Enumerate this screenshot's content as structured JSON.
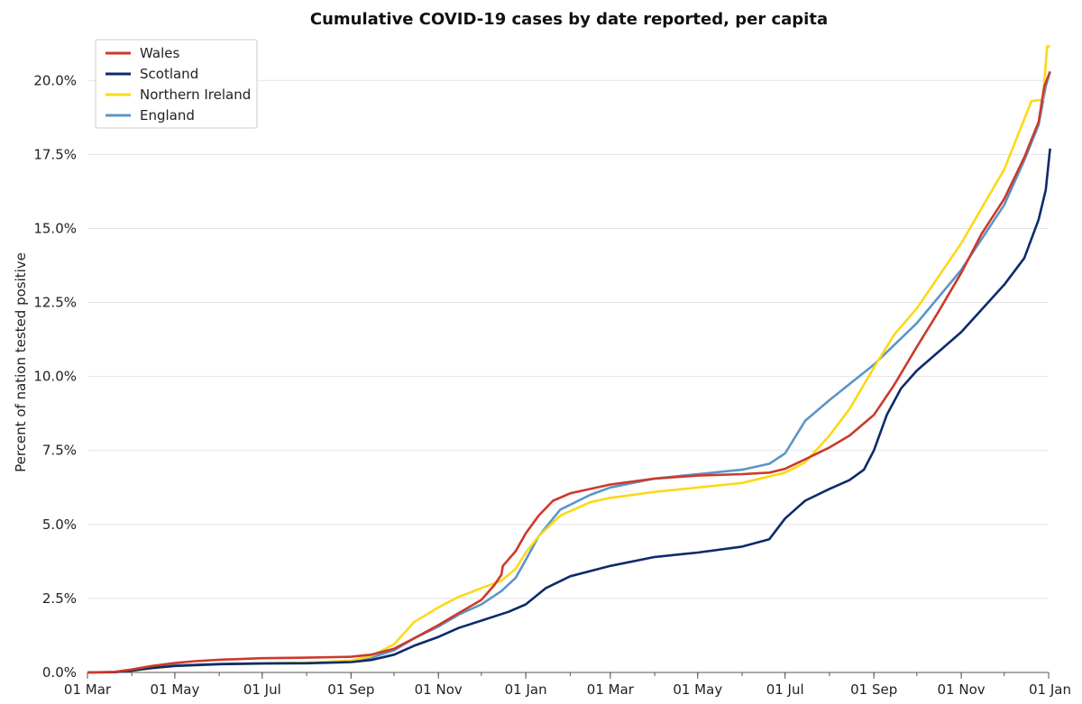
{
  "chart_data": {
    "type": "line",
    "title": "Cumulative COVID-19 cases by date reported, per capita",
    "xlabel": "",
    "ylabel": "Percent of nation tested positive",
    "x_start": "2020-03-01",
    "x_end": "2022-01-01",
    "xlim": [
      "2020-03-01",
      "2022-01-01"
    ],
    "ylim": [
      0,
      21.5
    ],
    "x_ticks": [
      {
        "date": "2020-03-01",
        "label": "01 Mar"
      },
      {
        "date": "2020-05-01",
        "label": "01 May"
      },
      {
        "date": "2020-07-01",
        "label": "01 Jul"
      },
      {
        "date": "2020-09-01",
        "label": "01 Sep"
      },
      {
        "date": "2020-11-01",
        "label": "01 Nov"
      },
      {
        "date": "2021-01-01",
        "label": "01 Jan"
      },
      {
        "date": "2021-03-01",
        "label": "01 Mar"
      },
      {
        "date": "2021-05-01",
        "label": "01 May"
      },
      {
        "date": "2021-07-01",
        "label": "01 Jul"
      },
      {
        "date": "2021-09-01",
        "label": "01 Sep"
      },
      {
        "date": "2021-11-01",
        "label": "01 Nov"
      },
      {
        "date": "2022-01-01",
        "label": "01 Jan"
      }
    ],
    "y_ticks": [
      {
        "value": 0,
        "label": "0.0%"
      },
      {
        "value": 2.5,
        "label": "2.5%"
      },
      {
        "value": 5,
        "label": "5.0%"
      },
      {
        "value": 7.5,
        "label": "7.5%"
      },
      {
        "value": 10,
        "label": "10.0%"
      },
      {
        "value": 12.5,
        "label": "12.5%"
      },
      {
        "value": 15,
        "label": "15.0%"
      },
      {
        "value": 17.5,
        "label": "17.5%"
      },
      {
        "value": 20,
        "label": "20.0%"
      }
    ],
    "grid": "horizontal",
    "legend_position": "top-left",
    "series": [
      {
        "name": "Wales",
        "color": "#cc3a2a",
        "points": [
          [
            "2020-03-01",
            0
          ],
          [
            "2020-03-20",
            0.02
          ],
          [
            "2020-04-01",
            0.1
          ],
          [
            "2020-04-15",
            0.22
          ],
          [
            "2020-05-01",
            0.32
          ],
          [
            "2020-05-15",
            0.38
          ],
          [
            "2020-06-01",
            0.43
          ],
          [
            "2020-07-01",
            0.48
          ],
          [
            "2020-08-01",
            0.5
          ],
          [
            "2020-09-01",
            0.53
          ],
          [
            "2020-09-15",
            0.6
          ],
          [
            "2020-10-01",
            0.8
          ],
          [
            "2020-10-15",
            1.15
          ],
          [
            "2020-11-01",
            1.6
          ],
          [
            "2020-11-15",
            2.0
          ],
          [
            "2020-12-01",
            2.45
          ],
          [
            "2020-12-10",
            2.95
          ],
          [
            "2020-12-15",
            3.3
          ],
          [
            "2020-12-16",
            3.6
          ],
          [
            "2020-12-25",
            4.1
          ],
          [
            "2021-01-01",
            4.7
          ],
          [
            "2021-01-10",
            5.3
          ],
          [
            "2021-01-20",
            5.8
          ],
          [
            "2021-02-01",
            6.05
          ],
          [
            "2021-03-01",
            6.35
          ],
          [
            "2021-04-01",
            6.55
          ],
          [
            "2021-05-01",
            6.65
          ],
          [
            "2021-06-01",
            6.7
          ],
          [
            "2021-06-20",
            6.75
          ],
          [
            "2021-07-01",
            6.88
          ],
          [
            "2021-07-15",
            7.2
          ],
          [
            "2021-08-01",
            7.6
          ],
          [
            "2021-08-15",
            8.0
          ],
          [
            "2021-09-01",
            8.7
          ],
          [
            "2021-09-15",
            9.7
          ],
          [
            "2021-10-01",
            11.0
          ],
          [
            "2021-10-15",
            12.1
          ],
          [
            "2021-11-01",
            13.5
          ],
          [
            "2021-11-15",
            14.8
          ],
          [
            "2021-12-01",
            16.0
          ],
          [
            "2021-12-15",
            17.4
          ],
          [
            "2021-12-25",
            18.6
          ],
          [
            "2021-12-29",
            19.8
          ],
          [
            "2022-01-02",
            20.3
          ]
        ]
      },
      {
        "name": "Scotland",
        "color": "#0d2a6b",
        "points": [
          [
            "2020-03-01",
            0
          ],
          [
            "2020-03-20",
            0.01
          ],
          [
            "2020-04-01",
            0.06
          ],
          [
            "2020-04-15",
            0.15
          ],
          [
            "2020-05-01",
            0.22
          ],
          [
            "2020-06-01",
            0.28
          ],
          [
            "2020-07-01",
            0.3
          ],
          [
            "2020-08-01",
            0.31
          ],
          [
            "2020-09-01",
            0.35
          ],
          [
            "2020-09-15",
            0.42
          ],
          [
            "2020-10-01",
            0.6
          ],
          [
            "2020-10-15",
            0.9
          ],
          [
            "2020-11-01",
            1.2
          ],
          [
            "2020-11-15",
            1.5
          ],
          [
            "2020-12-01",
            1.75
          ],
          [
            "2020-12-20",
            2.05
          ],
          [
            "2021-01-01",
            2.3
          ],
          [
            "2021-01-15",
            2.85
          ],
          [
            "2021-02-01",
            3.25
          ],
          [
            "2021-03-01",
            3.6
          ],
          [
            "2021-04-01",
            3.9
          ],
          [
            "2021-05-01",
            4.05
          ],
          [
            "2021-06-01",
            4.25
          ],
          [
            "2021-06-20",
            4.5
          ],
          [
            "2021-07-01",
            5.2
          ],
          [
            "2021-07-15",
            5.8
          ],
          [
            "2021-08-01",
            6.2
          ],
          [
            "2021-08-15",
            6.5
          ],
          [
            "2021-08-25",
            6.85
          ],
          [
            "2021-09-01",
            7.5
          ],
          [
            "2021-09-10",
            8.7
          ],
          [
            "2021-09-20",
            9.6
          ],
          [
            "2021-10-01",
            10.2
          ],
          [
            "2021-11-01",
            11.5
          ],
          [
            "2021-12-01",
            13.1
          ],
          [
            "2021-12-15",
            14.0
          ],
          [
            "2021-12-25",
            15.3
          ],
          [
            "2021-12-30",
            16.3
          ],
          [
            "2022-01-02",
            17.7
          ]
        ]
      },
      {
        "name": "Northern Ireland",
        "color": "#fcd917",
        "points": [
          [
            "2020-03-01",
            0
          ],
          [
            "2020-03-20",
            0.01
          ],
          [
            "2020-04-01",
            0.06
          ],
          [
            "2020-04-15",
            0.14
          ],
          [
            "2020-05-01",
            0.22
          ],
          [
            "2020-06-01",
            0.27
          ],
          [
            "2020-07-01",
            0.3
          ],
          [
            "2020-08-01",
            0.33
          ],
          [
            "2020-09-01",
            0.4
          ],
          [
            "2020-09-15",
            0.55
          ],
          [
            "2020-10-01",
            0.95
          ],
          [
            "2020-10-15",
            1.7
          ],
          [
            "2020-11-01",
            2.2
          ],
          [
            "2020-11-15",
            2.55
          ],
          [
            "2020-12-01",
            2.85
          ],
          [
            "2020-12-15",
            3.1
          ],
          [
            "2020-12-25",
            3.5
          ],
          [
            "2021-01-01",
            4.05
          ],
          [
            "2021-01-10",
            4.6
          ],
          [
            "2021-01-25",
            5.3
          ],
          [
            "2021-02-15",
            5.75
          ],
          [
            "2021-03-01",
            5.9
          ],
          [
            "2021-04-01",
            6.1
          ],
          [
            "2021-05-01",
            6.25
          ],
          [
            "2021-06-01",
            6.4
          ],
          [
            "2021-07-01",
            6.75
          ],
          [
            "2021-07-15",
            7.1
          ],
          [
            "2021-08-01",
            8.0
          ],
          [
            "2021-08-15",
            8.9
          ],
          [
            "2021-09-01",
            10.3
          ],
          [
            "2021-09-15",
            11.4
          ],
          [
            "2021-10-01",
            12.3
          ],
          [
            "2021-11-01",
            14.5
          ],
          [
            "2021-12-01",
            17.0
          ],
          [
            "2021-12-20",
            19.3
          ],
          [
            "2021-12-28",
            19.35
          ],
          [
            "2021-12-31",
            21.15
          ],
          [
            "2022-01-02",
            21.15
          ]
        ]
      },
      {
        "name": "England",
        "color": "#5b95c9",
        "points": [
          [
            "2020-03-01",
            0
          ],
          [
            "2020-03-20",
            0.01
          ],
          [
            "2020-04-01",
            0.07
          ],
          [
            "2020-04-15",
            0.17
          ],
          [
            "2020-05-01",
            0.24
          ],
          [
            "2020-06-01",
            0.29
          ],
          [
            "2020-07-01",
            0.31
          ],
          [
            "2020-08-01",
            0.33
          ],
          [
            "2020-09-01",
            0.38
          ],
          [
            "2020-09-15",
            0.5
          ],
          [
            "2020-10-01",
            0.75
          ],
          [
            "2020-10-15",
            1.15
          ],
          [
            "2020-11-01",
            1.55
          ],
          [
            "2020-11-15",
            1.95
          ],
          [
            "2020-12-01",
            2.3
          ],
          [
            "2020-12-15",
            2.75
          ],
          [
            "2020-12-25",
            3.2
          ],
          [
            "2021-01-01",
            3.8
          ],
          [
            "2021-01-10",
            4.6
          ],
          [
            "2021-01-25",
            5.5
          ],
          [
            "2021-02-15",
            6.0
          ],
          [
            "2021-03-01",
            6.25
          ],
          [
            "2021-04-01",
            6.55
          ],
          [
            "2021-05-01",
            6.7
          ],
          [
            "2021-06-01",
            6.85
          ],
          [
            "2021-06-20",
            7.05
          ],
          [
            "2021-07-01",
            7.4
          ],
          [
            "2021-07-15",
            8.5
          ],
          [
            "2021-08-01",
            9.2
          ],
          [
            "2021-09-01",
            10.4
          ],
          [
            "2021-10-01",
            11.8
          ],
          [
            "2021-11-01",
            13.6
          ],
          [
            "2021-12-01",
            15.8
          ],
          [
            "2021-12-15",
            17.3
          ],
          [
            "2021-12-25",
            18.5
          ],
          [
            "2021-12-30",
            19.8
          ],
          [
            "2022-01-02",
            20.3
          ]
        ]
      }
    ]
  }
}
